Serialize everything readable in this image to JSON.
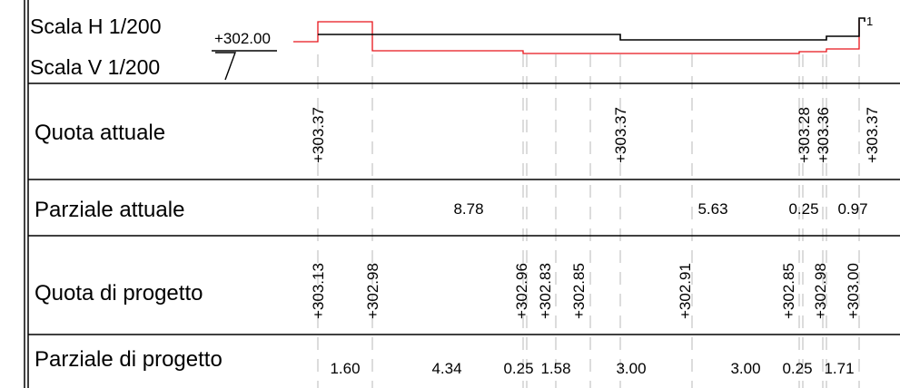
{
  "scales": {
    "horizontal": "Scala H  1/200",
    "vertical": "Scala V  1/200"
  },
  "datum": {
    "value": "+302.00"
  },
  "colors": {
    "existing": "#000000",
    "design": "#e8141a",
    "grid": "#000000",
    "guide": "#b8b8b8"
  },
  "rows": {
    "existing_elevation": {
      "label": "Quota attuale"
    },
    "existing_partial": {
      "label": "Parziale attuale"
    },
    "design_elevation": {
      "label": "Quota di progetto"
    },
    "design_partial": {
      "label": "Parziale di progetto"
    }
  },
  "existing_elevations": [
    "+303.37",
    "+303.37",
    "+303.28",
    "+303.36",
    "+303.37"
  ],
  "existing_partials": [
    "8.78",
    "5.63",
    "0.25",
    "0.97"
  ],
  "design_elevations": [
    "+303.13",
    "+302.98",
    "+302.96",
    "+302.83",
    "+302.85",
    "+302.91",
    "+302.85",
    "+302.98",
    "+303.00"
  ],
  "design_partials": [
    "1.60",
    "4.34",
    "0.25",
    "1.58",
    "3.00",
    "3.00",
    "0.25",
    "1.71"
  ],
  "end_mark": "1"
}
